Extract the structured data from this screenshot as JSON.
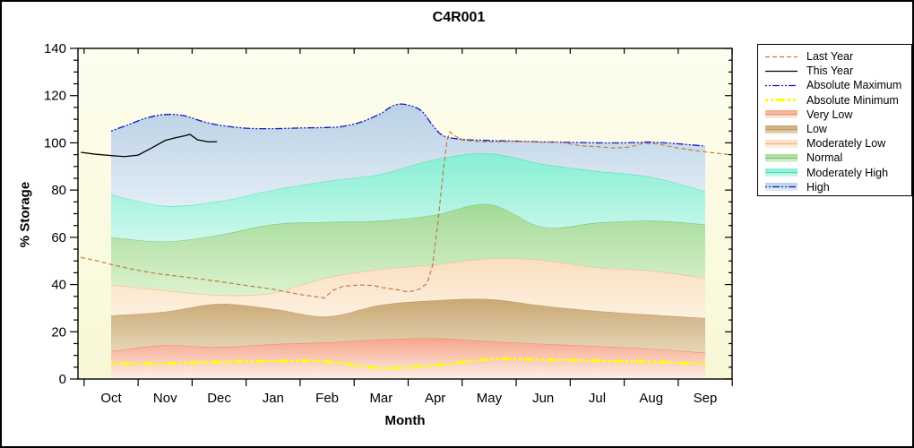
{
  "figure": {
    "title": "C4R001"
  },
  "axes": {
    "xlabel": "Month",
    "ylabel": "% Storage",
    "months": [
      "Oct",
      "Nov",
      "Dec",
      "Jan",
      "Feb",
      "Mar",
      "Apr",
      "May",
      "Jun",
      "Jul",
      "Aug",
      "Sep"
    ],
    "yticks": [
      0,
      20,
      40,
      60,
      80,
      100,
      120,
      140
    ],
    "y_minor_step": 5,
    "ylim": [
      0,
      140
    ],
    "plot_bg_top": "#fdfdee",
    "plot_bg_bottom": "#f8f8d6"
  },
  "legend": {
    "items": [
      {
        "label": "Last Year",
        "kind": "line",
        "color": "#bf7c3f",
        "dash": "5 3",
        "width": 1.2
      },
      {
        "label": "This Year",
        "kind": "line",
        "color": "#000000",
        "dash": "",
        "width": 1.3
      },
      {
        "label": "Absolute Maximum",
        "kind": "line",
        "color": "#1414cc",
        "dash": "2 2 2 2 8 2",
        "width": 1.3
      },
      {
        "label": "Absolute Minimum",
        "kind": "line",
        "color": "#ffff00",
        "dash": "3 3 3 3 10 3",
        "width": 3
      },
      {
        "label": "Very Low",
        "kind": "band",
        "band": "Very Low"
      },
      {
        "label": "Low",
        "kind": "band",
        "band": "Low"
      },
      {
        "label": "Moderately Low",
        "kind": "band",
        "band": "Moderately Low"
      },
      {
        "label": "Normal",
        "kind": "band",
        "band": "Normal"
      },
      {
        "label": "Moderately High",
        "kind": "band",
        "band": "Moderately High"
      },
      {
        "label": "High",
        "kind": "band",
        "band": "High",
        "line_dash": "2 2 2 2 8 2",
        "line_color": "#1414cc"
      }
    ]
  },
  "chart_data": {
    "type": "area",
    "title": "C4R001",
    "xlabel": "Month",
    "ylabel": "% Storage",
    "ylim": [
      0,
      140
    ],
    "categories": [
      "Oct",
      "Nov",
      "Dec",
      "Jan",
      "Feb",
      "Mar",
      "Apr",
      "May",
      "Jun",
      "Jul",
      "Aug",
      "Sep"
    ],
    "bands": [
      {
        "name": "Very Low",
        "edge": "#ee8f6e",
        "fill_top": "#f5a488",
        "fill_bottom": "#fdf0e8",
        "top": [
          11.8,
          14.3,
          13.5,
          14.8,
          15.5,
          16.8,
          17.3,
          16.0,
          14.9,
          13.9,
          12.8,
          11.1
        ]
      },
      {
        "name": "Low",
        "edge": "#c09a62",
        "fill_top": "#c9a873",
        "fill_bottom": "#e6d6b8",
        "top": [
          26.9,
          28.5,
          31.8,
          29.7,
          26.5,
          31.4,
          33.3,
          33.8,
          31.0,
          28.8,
          27.2,
          25.8
        ]
      },
      {
        "name": "Moderately Low",
        "edge": "#e8bc8e",
        "fill_top": "#fadec0",
        "fill_bottom": "#fdf1e0",
        "top": [
          40.0,
          37.5,
          35.5,
          36.5,
          43.0,
          46.5,
          48.5,
          51.0,
          50.4,
          47.2,
          45.9,
          42.8
        ]
      },
      {
        "name": "Normal",
        "edge": "#77c677",
        "fill_top": "#a2da97",
        "fill_bottom": "#ddf2cf",
        "top": [
          60.0,
          58.2,
          61.0,
          65.5,
          66.5,
          67.0,
          69.5,
          74.0,
          64.3,
          66.2,
          67.0,
          65.5
        ]
      },
      {
        "name": "Moderately High",
        "edge": "#4fe2b2",
        "fill_top": "#87efd3",
        "fill_bottom": "#ccf8ec",
        "top": [
          78.0,
          73.3,
          75.2,
          80.0,
          83.8,
          86.8,
          93.0,
          95.5,
          91.0,
          88.0,
          85.5,
          79.5
        ]
      },
      {
        "name": "High",
        "edge": null,
        "fill_top": "#b9d0e4",
        "fill_bottom": "#e2eef6",
        "top_x": [
          0,
          0.3,
          0.65,
          1.0,
          1.35,
          1.7,
          2.0,
          2.5,
          3.0,
          3.5,
          4.0,
          4.3,
          4.65,
          5.0,
          5.15,
          5.3,
          5.5,
          5.75,
          5.95,
          6.15,
          6.5,
          7.0,
          7.5,
          8.0,
          8.5,
          9.0,
          9.5,
          9.8,
          10.0,
          10.5,
          11.0
        ],
        "top": [
          105,
          107.5,
          110.5,
          112,
          111.5,
          109,
          107.5,
          106.2,
          106,
          106.3,
          106.5,
          107,
          109,
          112.5,
          114.8,
          116.3,
          116,
          113.5,
          107.5,
          103,
          101.5,
          101,
          100.7,
          100.4,
          100.2,
          100,
          100,
          100.2,
          100.3,
          99.6,
          98.6
        ]
      }
    ],
    "lines": {
      "abs_max": {
        "name": "Absolute Maximum",
        "color": "#1414cc",
        "dash": "2 2 2 2 8 2",
        "width": 1.3,
        "use_band_top": "High"
      },
      "abs_min": {
        "name": "Absolute Minimum",
        "color": "#ffff00",
        "dash": "3 3 3 3 10 3",
        "width": 3,
        "x": [
          0,
          1,
          2,
          3,
          4,
          5,
          6,
          7,
          8,
          9,
          10,
          11
        ],
        "v": [
          6.5,
          6.6,
          7.2,
          7.6,
          7.4,
          4.6,
          5.8,
          8.3,
          8.2,
          7.7,
          7.3,
          6.4
        ]
      },
      "last_year": {
        "name": "Last Year",
        "color": "#bf7c3f",
        "dash": "5 3",
        "width": 1.2,
        "x": [
          -0.56,
          -0.25,
          0,
          0.4,
          0.8,
          1.0,
          1.5,
          2.0,
          2.5,
          3.0,
          3.5,
          3.8,
          3.95,
          4.1,
          4.3,
          4.6,
          4.85,
          5.0,
          5.3,
          5.5,
          5.7,
          5.85,
          5.95,
          6.05,
          6.15,
          6.22,
          6.27,
          6.35,
          6.5,
          6.8,
          7.0,
          7.5,
          8.0,
          8.3,
          8.7,
          9.0,
          9.3,
          9.6,
          9.85,
          10.1,
          10.5,
          10.8,
          11.0,
          11.45
        ],
        "v": [
          51.5,
          50.0,
          48.5,
          46.5,
          44.8,
          44.2,
          42.8,
          41.3,
          39.6,
          38.0,
          35.8,
          34.8,
          34.3,
          37.5,
          39.3,
          39.8,
          39.6,
          38.8,
          37.8,
          36.8,
          38.0,
          40.5,
          48.0,
          66.0,
          88.0,
          101.0,
          104.6,
          103.2,
          101.2,
          100.6,
          100.4,
          100.6,
          100.2,
          100.4,
          98.7,
          98.4,
          97.8,
          98.2,
          99.8,
          99.6,
          97.8,
          96.8,
          96.2,
          95.0
        ]
      },
      "this_year": {
        "name": "This Year",
        "color": "#000000",
        "dash": "",
        "width": 1.3,
        "x": [
          -0.56,
          -0.3,
          0,
          0.25,
          0.5,
          0.75,
          1.0,
          1.2,
          1.35,
          1.46,
          1.6,
          1.8,
          1.96
        ],
        "v": [
          96.0,
          95.2,
          94.6,
          94.2,
          94.8,
          97.8,
          101.0,
          102.2,
          102.9,
          103.6,
          101.3,
          100.4,
          100.5
        ]
      }
    }
  }
}
